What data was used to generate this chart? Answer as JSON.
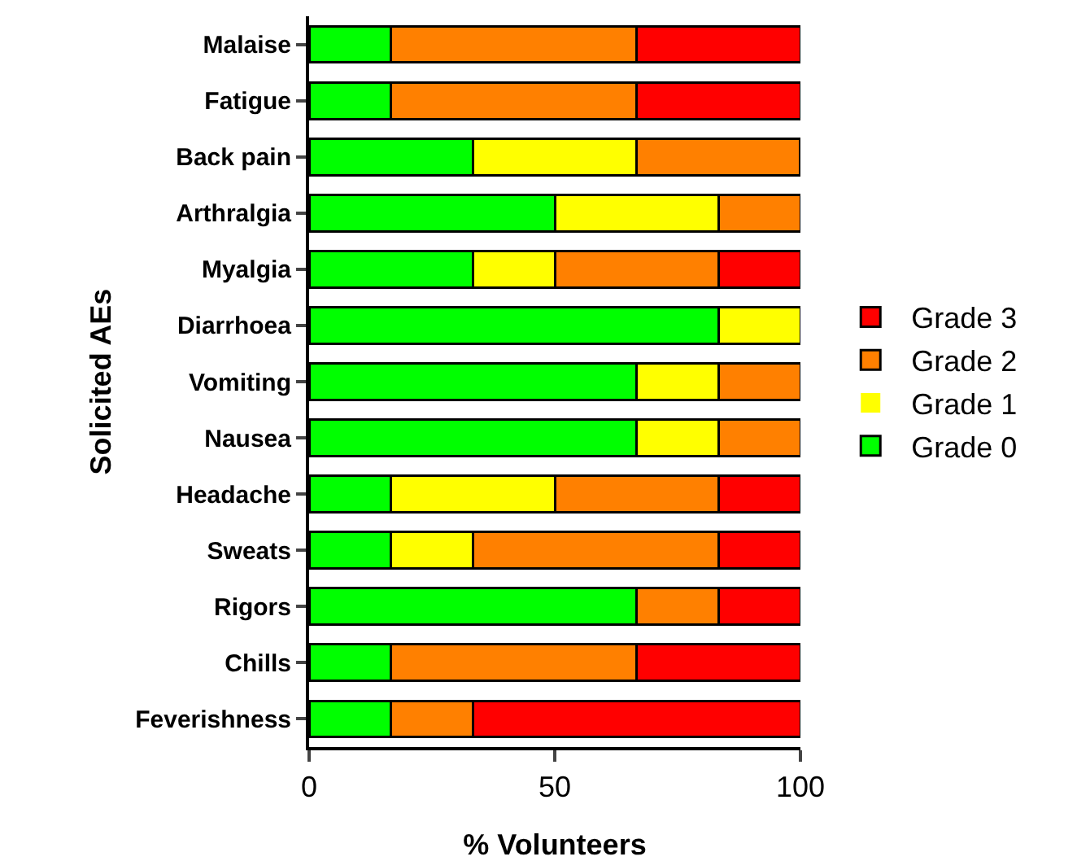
{
  "chart_data": {
    "type": "bar",
    "orientation": "horizontal",
    "stacked": true,
    "xlabel": "% Volunteers",
    "ylabel": "Solicited AEs",
    "categories": [
      "Malaise",
      "Fatigue",
      "Back pain",
      "Arthralgia",
      "Myalgia",
      "Diarrhoea",
      "Vomiting",
      "Nausea",
      "Headache",
      "Sweats",
      "Rigors",
      "Chills",
      "Feverishness"
    ],
    "series": [
      {
        "name": "Grade 0",
        "color": "#00ff00",
        "values": [
          16.7,
          16.7,
          33.3,
          50,
          33.3,
          83.3,
          66.7,
          66.7,
          16.7,
          16.7,
          66.7,
          16.7,
          16.7
        ]
      },
      {
        "name": "Grade 1",
        "color": "#ffff00",
        "values": [
          0,
          0,
          33.3,
          33.3,
          16.7,
          16.7,
          16.7,
          16.7,
          33.3,
          16.7,
          0,
          0,
          0
        ]
      },
      {
        "name": "Grade 2",
        "color": "#ff8000",
        "values": [
          50,
          50,
          33.3,
          16.7,
          33.3,
          0,
          16.7,
          16.7,
          33.3,
          50,
          16.7,
          50,
          16.7
        ]
      },
      {
        "name": "Grade 3",
        "color": "#ff0000",
        "values": [
          33.3,
          33.3,
          0,
          0,
          16.7,
          0,
          0,
          0,
          16.7,
          16.7,
          16.7,
          33.3,
          66.7
        ]
      }
    ],
    "xlim": [
      0,
      100
    ],
    "xticks": [
      0,
      50,
      100
    ],
    "grid": false,
    "legend": "right"
  }
}
